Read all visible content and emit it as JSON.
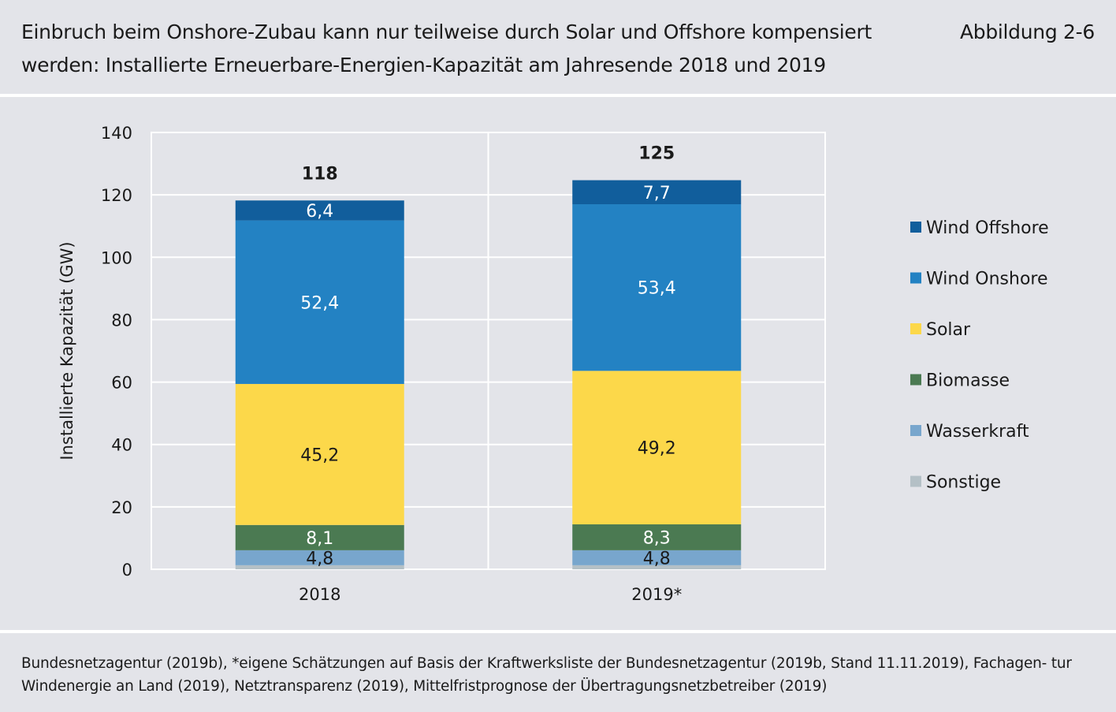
{
  "header": {
    "title": "Einbruch beim Onshore-Zubau kann nur teilweise durch Solar und Offshore kompensiert werden: Installierte Erneuerbare-Energien-Kapazität am Jahresende 2018 und 2019",
    "figure_label": "Abbildung 2-6"
  },
  "chart_data": {
    "type": "bar",
    "stacked": true,
    "title": "",
    "xlabel": "",
    "ylabel": "Installierte Kapazität (GW)",
    "ylim": [
      0,
      140
    ],
    "yticks": [
      0,
      20,
      40,
      60,
      80,
      100,
      120,
      140
    ],
    "grid": true,
    "legend_position": "right",
    "categories": [
      "2018",
      "2019*"
    ],
    "totals": [
      118,
      125
    ],
    "total_labels": [
      "118",
      "125"
    ],
    "series": [
      {
        "name": "Sonstige",
        "color": "#b4c0c6",
        "values": [
          1.3,
          1.3
        ],
        "labels": [
          "",
          ""
        ],
        "label_color": "#1a1a1a"
      },
      {
        "name": "Wasserkraft",
        "color": "#78a6cd",
        "values": [
          4.8,
          4.8
        ],
        "labels": [
          "4,8",
          "4,8"
        ],
        "label_color": "#1a1a1a"
      },
      {
        "name": "Biomasse",
        "color": "#4b7a52",
        "values": [
          8.1,
          8.3
        ],
        "labels": [
          "8,1",
          "8,3"
        ],
        "label_color": "#ffffff"
      },
      {
        "name": "Solar",
        "color": "#fcd84a",
        "values": [
          45.2,
          49.2
        ],
        "labels": [
          "45,2",
          "49,2"
        ],
        "label_color": "#1a1a1a"
      },
      {
        "name": "Wind Onshore",
        "color": "#2382c3",
        "values": [
          52.4,
          53.4
        ],
        "labels": [
          "52,4",
          "53,4"
        ],
        "label_color": "#ffffff"
      },
      {
        "name": "Wind Offshore",
        "color": "#115e9c",
        "values": [
          6.4,
          7.7
        ],
        "labels": [
          "6,4",
          "7,7"
        ],
        "label_color": "#ffffff"
      }
    ]
  },
  "footer": {
    "source": "Bundesnetzagentur (2019b), *eigene Schätzungen auf Basis der Kraftwerksliste der Bundesnetzagentur (2019b, Stand 11.11.2019), Fachagen- tur Windenergie an Land (2019), Netztransparenz (2019), Mittelfristprognose der Übertragungsnetzbetreiber (2019)"
  }
}
